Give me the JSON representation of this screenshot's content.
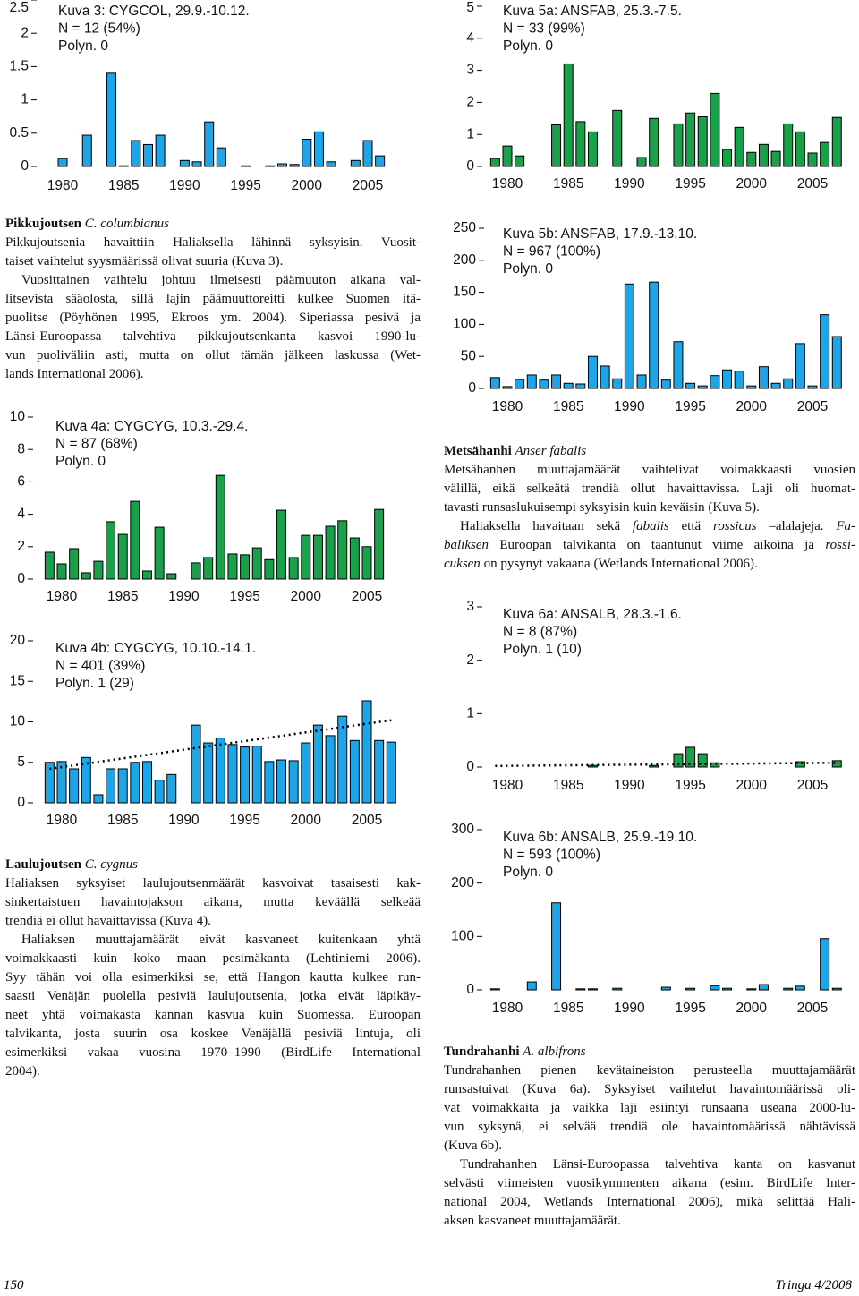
{
  "chart_data": [
    {
      "type": "bar",
      "title": "Kuva 3: CYGCOL, 29.9.-10.12.",
      "notes": [
        "N = 12 (54%)",
        "Polyn. 0"
      ],
      "color": "#1ea5e8",
      "x": [
        1980,
        1982,
        1984,
        1985,
        1986,
        1987,
        1988,
        1990,
        1991,
        1992,
        1993,
        1995,
        1997,
        1998,
        1999,
        2000,
        2001,
        2002,
        2004,
        2005,
        2006
      ],
      "values": [
        0.12,
        0.47,
        1.4,
        0.01,
        0.39,
        0.33,
        0.47,
        0.09,
        0.07,
        0.67,
        0.28,
        0.01,
        0.01,
        0.04,
        0.03,
        0.41,
        0.52,
        0.07,
        0.09,
        0.39,
        0.16
      ],
      "xlim": [
        1978,
        2008
      ],
      "xticks": [
        1980,
        1985,
        1990,
        1995,
        2000,
        2005
      ],
      "ylim": [
        0,
        2.5
      ],
      "yticks": [
        0,
        0.5,
        1,
        1.5,
        2,
        2.5
      ]
    },
    {
      "type": "bar",
      "title": "Kuva 5a: ANSFAB, 25.3.-7.5.",
      "notes": [
        "N = 33 (99%)",
        "Polyn. 0"
      ],
      "color": "#1a9f4a",
      "x": [
        1979,
        1980,
        1981,
        1984,
        1985,
        1986,
        1987,
        1989,
        1991,
        1992,
        1994,
        1995,
        1996,
        1997,
        1998,
        1999,
        2000,
        2001,
        2002,
        2003,
        2004,
        2005,
        2006,
        2007
      ],
      "values": [
        0.25,
        0.64,
        0.33,
        1.3,
        3.2,
        1.4,
        1.08,
        1.75,
        0.28,
        1.5,
        1.33,
        1.67,
        1.55,
        2.28,
        0.53,
        1.22,
        0.44,
        0.69,
        0.47,
        1.33,
        1.08,
        0.42,
        0.75,
        1.53
      ],
      "xlim": [
        1978,
        2008
      ],
      "xticks": [
        1980,
        1985,
        1990,
        1995,
        2000,
        2005
      ],
      "ylim": [
        0,
        5
      ],
      "yticks": [
        0,
        1,
        2,
        3,
        4,
        5
      ]
    },
    {
      "type": "bar",
      "title": "Kuva 5b: ANSFAB, 17.9.-13.10.",
      "notes": [
        "N = 967 (100%)",
        "Polyn. 0"
      ],
      "color": "#1ea5e8",
      "x": [
        1979,
        1980,
        1981,
        1982,
        1983,
        1984,
        1985,
        1986,
        1987,
        1988,
        1989,
        1990,
        1991,
        1992,
        1993,
        1994,
        1995,
        1996,
        1997,
        1998,
        1999,
        2000,
        2001,
        2002,
        2003,
        2004,
        2005,
        2006,
        2007
      ],
      "values": [
        17,
        3,
        14,
        21,
        13,
        21,
        8,
        7,
        50,
        35,
        15,
        163,
        21,
        166,
        13,
        73,
        8,
        4,
        20,
        29,
        27,
        4,
        34,
        8,
        15,
        70,
        4,
        115,
        81
      ],
      "xlim": [
        1978,
        2008
      ],
      "xticks": [
        1980,
        1985,
        1990,
        1995,
        2000,
        2005
      ],
      "ylim": [
        0,
        250
      ],
      "yticks": [
        0,
        50,
        100,
        150,
        200,
        250
      ]
    },
    {
      "type": "bar",
      "title": "Kuva 4a: CYGCYG, 10.3.-29.4.",
      "notes": [
        "N = 87 (68%)",
        "Polyn. 0"
      ],
      "color": "#1a9f4a",
      "x": [
        1979,
        1980,
        1981,
        1982,
        1983,
        1984,
        1985,
        1986,
        1987,
        1988,
        1989,
        1991,
        1992,
        1993,
        1994,
        1995,
        1996,
        1997,
        1998,
        1999,
        2000,
        2001,
        2002,
        2003,
        2004,
        2005,
        2006
      ],
      "values": [
        1.66,
        0.94,
        1.88,
        0.39,
        1.1,
        3.54,
        2.76,
        4.8,
        0.5,
        3.2,
        0.33,
        1,
        1.33,
        6.4,
        1.55,
        1.5,
        1.93,
        1.2,
        4.25,
        1.33,
        2.7,
        2.7,
        3.26,
        3.6,
        2.54,
        2,
        4.3
      ],
      "xlim": [
        1978,
        2008
      ],
      "xticks": [
        1980,
        1985,
        1990,
        1995,
        2000,
        2005
      ],
      "ylim": [
        0,
        10
      ],
      "yticks": [
        0,
        2,
        4,
        6,
        8,
        10
      ]
    },
    {
      "type": "bar",
      "title": "Kuva 4b: CYGCYG, 10.10.-14.1.",
      "notes": [
        "N = 401 (39%)",
        "Polyn. 1 (29)"
      ],
      "color": "#1ea5e8",
      "x": [
        1979,
        1980,
        1981,
        1982,
        1983,
        1984,
        1985,
        1986,
        1987,
        1988,
        1989,
        1991,
        1992,
        1993,
        1994,
        1995,
        1996,
        1997,
        1998,
        1999,
        2000,
        2001,
        2002,
        2003,
        2004,
        2005,
        2006,
        2007
      ],
      "values": [
        5,
        5.1,
        4.2,
        5.6,
        1,
        4.2,
        4.2,
        5,
        5.1,
        2.8,
        3.5,
        9.6,
        7.4,
        8,
        7.2,
        6.9,
        7,
        5.1,
        5.3,
        5.2,
        7.4,
        9.6,
        8.3,
        10.7,
        7.7,
        12.6,
        7.7,
        7.5
      ],
      "trend": {
        "x": [
          1979,
          2007
        ],
        "values": [
          4.2,
          10.2
        ]
      },
      "xlim": [
        1978,
        2008
      ],
      "xticks": [
        1980,
        1985,
        1990,
        1995,
        2000,
        2005
      ],
      "ylim": [
        0,
        20
      ],
      "yticks": [
        0,
        5,
        10,
        15,
        20
      ]
    },
    {
      "type": "bar",
      "title": "Kuva 6a: ANSALB, 28.3.-1.6.",
      "notes": [
        "N = 8 (87%)",
        "Polyn. 1 (10)"
      ],
      "color": "#1a9f4a",
      "x": [
        1987,
        1992,
        1994,
        1995,
        1996,
        1997,
        2004,
        2007
      ],
      "values": [
        0.03,
        0.03,
        0.25,
        0.37,
        0.25,
        0.08,
        0.1,
        0.12
      ],
      "trend": {
        "x": [
          1979,
          2007
        ],
        "values": [
          0.02,
          0.08
        ]
      },
      "xlim": [
        1978,
        2008
      ],
      "xticks": [
        1980,
        1985,
        1990,
        1995,
        2000,
        2005
      ],
      "ylim": [
        0,
        3
      ],
      "yticks": [
        0,
        1,
        2,
        3
      ]
    },
    {
      "type": "bar",
      "title": "Kuva 6b: ANSALB, 25.9.-19.10.",
      "notes": [
        "N = 593 (100%)",
        "Polyn. 0"
      ],
      "color": "#1ea5e8",
      "x": [
        1979,
        1982,
        1984,
        1986,
        1987,
        1989,
        1993,
        1995,
        1997,
        1998,
        2000,
        2001,
        2003,
        2004,
        2006,
        2007
      ],
      "values": [
        2,
        15,
        163,
        2,
        2,
        3,
        5,
        3,
        8,
        3,
        2,
        10,
        3,
        7,
        96,
        3
      ],
      "xlim": [
        1978,
        2008
      ],
      "xticks": [
        1980,
        1985,
        1990,
        1995,
        2000,
        2005
      ],
      "ylim": [
        0,
        300
      ],
      "yticks": [
        0,
        100,
        200,
        300
      ]
    }
  ],
  "sections": [
    {
      "heading": {
        "name": "Pikkujoutsen",
        "latin": "C. columbianus"
      },
      "paragraphs": [
        [
          "Pikkujoutsenia havaittiin Haliaksella lähinnä syksyisin. Vuosit-",
          "taiset vaihtelut syysmäärissä olivat suuria (Kuva 3)."
        ],
        [
          "Vuosittainen vaihtelu johtuu ilmeisesti päämuuton aikana val-",
          "litsevista sääolosta, sillä lajin päämuuttoreitti kulkee Suomen itä-",
          "puolitse (Pöyhönen 1995, Ekroos ym. 2004). Siperiassa pesivä ja",
          "Länsi-Euroopassa talvehtiva pikkujoutsenkanta kasvoi 1990-lu-",
          "vun puoliväliin asti, mutta on ollut tämän jälkeen laskussa (Wet-",
          "lands International 2006)."
        ]
      ]
    },
    {
      "heading": {
        "name": "Laulujoutsen",
        "latin": "C. cygnus"
      },
      "paragraphs": [
        [
          "Haliaksen syksyiset laulujoutsenmäärät kasvoivat tasaisesti kak-",
          "sinkertaistuen havaintojakson aikana, mutta keväällä selkeää",
          "trendiä ei ollut havaittavissa (Kuva 4)."
        ],
        [
          "Haliaksen muuttajamäärät eivät kasvaneet kuitenkaan yhtä",
          "voimakkaasti kuin koko maan pesimäkanta (Lehtiniemi 2006).",
          "Syy tähän voi olla esimerkiksi se, että Hangon kautta kulkee run-",
          "saasti Venäjän puolella pesiviä laulujoutsenia, jotka eivät läpikäy-",
          "neet yhtä voimakasta kannan kasvua kuin Suomessa. Euroopan",
          "talvikanta, josta suurin osa koskee Venäjällä pesiviä lintuja, oli",
          "esimerkiksi vakaa vuosina 1970–1990 (BirdLife International",
          "2004)."
        ]
      ]
    },
    {
      "heading": {
        "name": "Metsähanhi",
        "latin": "Anser fabalis"
      },
      "paragraphs": [
        [
          "Metsähanhen muuttajamäärät vaihtelivat voimakkaasti vuosien",
          "välillä, eikä selkeätä trendiä ollut havaittavissa. Laji oli huomat-",
          "tavasti runsaslukuisempi syksyisin kuin keväisin (Kuva 5)."
        ],
        [
          [
            "Haliaksella havaitaan sekä ",
            {
              "italic": "fabalis"
            },
            " että ",
            {
              "italic": "rossicus"
            },
            " –alalajeja. ",
            {
              "italic": "Fa-"
            }
          ],
          [
            {
              "italic": "baliksen"
            },
            " Euroopan talvikanta on taantunut viime aikoina ja ",
            {
              "italic": "rossi-"
            }
          ],
          [
            {
              "italic": "cuksen"
            },
            " on pysynyt vakaana (Wetlands International 2006)."
          ]
        ]
      ]
    },
    {
      "heading": {
        "name": "Tundrahanhi",
        "latin": "A. albifrons"
      },
      "paragraphs": [
        [
          "Tundrahanhen pienen kevätaineiston perusteella muuttajamäärät",
          "runsastuivat (Kuva 6a). Syksyiset vaihtelut havaintomäärissä oli-",
          "vat voimakkaita ja vaikka laji esiintyi runsaana useana 2000-lu-",
          "vun syksynä, ei selvää trendiä ole havaintomäärissä nähtävissä",
          "(Kuva 6b)."
        ],
        [
          "Tundrahanhen Länsi-Euroopassa talvehtiva kanta on kasvanut",
          "selvästi viimeisten vuosikymmenten aikana (esim. BirdLife Inter-",
          "national 2004, Wetlands International 2006), mikä selittää Hali-",
          "aksen kasvaneet muuttajamäärät."
        ]
      ]
    }
  ],
  "footer": {
    "page": "150",
    "journal": "Tringa 4/2008"
  }
}
